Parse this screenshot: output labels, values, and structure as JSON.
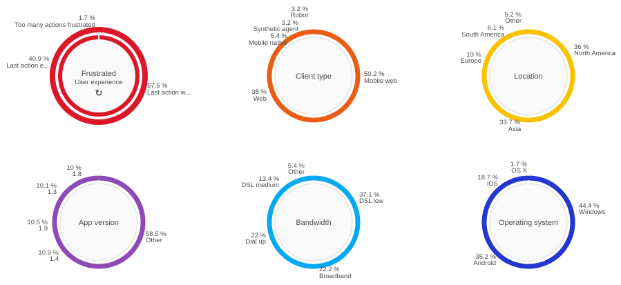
{
  "charts": [
    {
      "id": "frustrated",
      "title": "Frustrated",
      "subtitle": "User experience",
      "color": "#dc172a",
      "double": true,
      "slices": [
        {
          "pct": "1.7 %",
          "name": "Too many actions frustrated",
          "v": 1.7
        },
        {
          "pct": "57.5 %",
          "name": "Last action w...",
          "v": 57.5
        },
        {
          "pct": "40.9 %",
          "name": "Last action e...",
          "v": 40.9
        }
      ]
    },
    {
      "id": "client-type",
      "title": "Client type",
      "color": "#eb5d17",
      "slices": [
        {
          "pct": "50.2 %",
          "name": "Mobile web",
          "v": 50.2
        },
        {
          "pct": "38 %",
          "name": "Web",
          "v": 38
        },
        {
          "pct": "5.4 %",
          "name": "Mobile native",
          "v": 5.4
        },
        {
          "pct": "3.2 %",
          "name": "Synthetic agent",
          "v": 3.2
        },
        {
          "pct": "3.2 %",
          "name": "Robot",
          "v": 3.2
        }
      ]
    },
    {
      "id": "location",
      "title": "Location",
      "color": "#fcc200",
      "slices": [
        {
          "pct": "36 %",
          "name": "North America",
          "v": 36
        },
        {
          "pct": "33.7 %",
          "name": "Asia",
          "v": 33.7
        },
        {
          "pct": "19 %",
          "name": "Europe",
          "v": 19
        },
        {
          "pct": "6.1 %",
          "name": "South America",
          "v": 6.1
        },
        {
          "pct": "5.2 %",
          "name": "Other",
          "v": 5.2
        }
      ]
    },
    {
      "id": "app-version",
      "title": "App version",
      "color": "#8e4ab5",
      "slices": [
        {
          "pct": "58.5 %",
          "name": "Other",
          "v": 58.5
        },
        {
          "pct": "10.9 %",
          "name": "1.4",
          "v": 10.9
        },
        {
          "pct": "10.5 %",
          "name": "1.9",
          "v": 10.5
        },
        {
          "pct": "10.1 %",
          "name": "1.3",
          "v": 10.1
        },
        {
          "pct": "10 %",
          "name": "1.8",
          "v": 10
        }
      ]
    },
    {
      "id": "bandwidth",
      "title": "Bandwidth",
      "color": "#05a9f2",
      "slices": [
        {
          "pct": "37.1 %",
          "name": "DSL low",
          "v": 37.1
        },
        {
          "pct": "22.2 %",
          "name": "Broadband",
          "v": 22.2
        },
        {
          "pct": "22 %",
          "name": "Dial up",
          "v": 22
        },
        {
          "pct": "13.4 %",
          "name": "DSL medium",
          "v": 13.4
        },
        {
          "pct": "5.4 %",
          "name": "Other",
          "v": 5.4
        }
      ]
    },
    {
      "id": "operating-system",
      "title": "Operating system",
      "color": "#2438cf",
      "slices": [
        {
          "pct": "44.4 %",
          "name": "Windows",
          "v": 44.4
        },
        {
          "pct": "35.2 %",
          "name": "Android",
          "v": 35.2
        },
        {
          "pct": "18.7 %",
          "name": "iOS",
          "v": 18.7
        },
        {
          "pct": "1.7 %",
          "name": "OS X",
          "v": 1.7
        }
      ]
    }
  ]
}
